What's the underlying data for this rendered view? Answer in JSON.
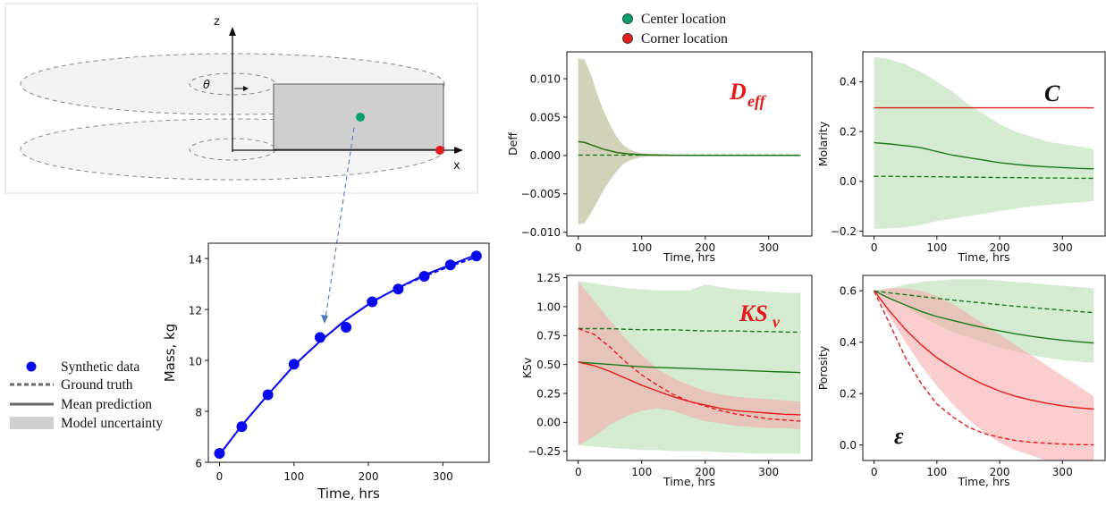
{
  "legend_top": {
    "items": [
      {
        "label": "Center location",
        "color": "#0b9e6f"
      },
      {
        "label": "Corner location",
        "color": "#e02020"
      }
    ]
  },
  "legend_left": {
    "items": [
      {
        "label": "Synthetic data",
        "kind": "dot"
      },
      {
        "label": "Ground truth",
        "kind": "dashed"
      },
      {
        "label": "Mean prediction",
        "kind": "solid"
      },
      {
        "label": "Model uncertainty",
        "kind": "band"
      }
    ]
  },
  "diagram": {
    "axis_z": "z",
    "axis_x": "x",
    "theta": "θ"
  },
  "colors": {
    "green": "#1a7a1a",
    "green_band": "#a9d8a6",
    "red": "#e41a1a",
    "red_band": "#f4a4a4",
    "blue": "#0a0aee",
    "symbol_red": "#e41a1a",
    "symbol_black": "#111111"
  },
  "chart_data": [
    {
      "id": "mass",
      "type": "scatter",
      "xlabel": "Time, hrs",
      "ylabel": "Mass, kg",
      "xlim": [
        -15,
        362
      ],
      "ylim": [
        6,
        14.6
      ],
      "xticks": [
        0,
        100,
        200,
        300
      ],
      "yticks": [
        6,
        8,
        10,
        12,
        14
      ],
      "series": [
        {
          "name": "Synthetic data",
          "kind": "points",
          "x": [
            0,
            30,
            65,
            100,
            135,
            170,
            205,
            240,
            275,
            310,
            345
          ],
          "y": [
            6.35,
            7.4,
            8.65,
            9.85,
            10.9,
            11.3,
            12.3,
            12.8,
            13.3,
            13.75,
            14.1
          ]
        },
        {
          "name": "Mean prediction",
          "kind": "line",
          "x": [
            0,
            30,
            65,
            100,
            135,
            170,
            205,
            240,
            275,
            310,
            345
          ],
          "y": [
            6.3,
            7.45,
            8.65,
            9.8,
            10.75,
            11.6,
            12.3,
            12.85,
            13.35,
            13.75,
            14.15
          ]
        },
        {
          "name": "Ground truth",
          "kind": "dashed",
          "x": [
            0,
            30,
            65,
            100,
            135,
            170,
            205,
            240,
            275,
            310,
            345
          ],
          "y": [
            6.3,
            7.45,
            8.65,
            9.8,
            10.75,
            11.6,
            12.3,
            12.85,
            13.3,
            13.7,
            14.05
          ]
        }
      ]
    },
    {
      "id": "deff",
      "type": "line",
      "symbol": "D_eff",
      "xlabel": "Time, hrs",
      "ylabel": "Deff",
      "xlim": [
        -18,
        368
      ],
      "ylim": [
        -0.0105,
        0.0135
      ],
      "xticks": [
        0,
        100,
        200,
        300
      ],
      "yticks": [
        -0.01,
        -0.005,
        0.0,
        0.005,
        0.01
      ],
      "ytick_labels": [
        "−0.010",
        "−0.005",
        "0.000",
        "0.005",
        "0.010"
      ],
      "x": [
        0,
        10,
        20,
        30,
        40,
        50,
        60,
        70,
        80,
        90,
        100,
        120,
        150,
        200,
        250,
        300,
        350
      ],
      "series": [
        {
          "name": "Corner location band",
          "kind": "band",
          "color": "red",
          "upper": [
            0.0127,
            0.0125,
            0.0105,
            0.008,
            0.0058,
            0.004,
            0.0025,
            0.0014,
            0.0008,
            0.0005,
            0.0003,
            0.0002,
            0.0001,
            5e-05,
            4e-05,
            3e-05,
            3e-05
          ],
          "lower": [
            -0.009,
            -0.0088,
            -0.0075,
            -0.006,
            -0.0045,
            -0.0032,
            -0.0021,
            -0.0012,
            -0.0007,
            -0.0004,
            -0.0002,
            -0.0001,
            -5e-05,
            -3e-05,
            -3e-05,
            -3e-05,
            -3e-05
          ]
        },
        {
          "name": "Center location band",
          "kind": "band",
          "color": "green",
          "upper": [
            0.0127,
            0.0125,
            0.0105,
            0.008,
            0.0058,
            0.004,
            0.0025,
            0.0014,
            0.0008,
            0.0005,
            0.0003,
            0.0002,
            0.0001,
            5e-05,
            4e-05,
            3e-05,
            3e-05
          ],
          "lower": [
            -0.009,
            -0.0088,
            -0.0075,
            -0.006,
            -0.0045,
            -0.0032,
            -0.0021,
            -0.0012,
            -0.0007,
            -0.0004,
            -0.0002,
            -0.0001,
            -5e-05,
            -3e-05,
            -3e-05,
            -3e-05,
            -3e-05
          ]
        },
        {
          "name": "Corner mean",
          "kind": "solid",
          "color": "red",
          "y": [
            0.0018,
            0.0017,
            0.0014,
            0.0011,
            0.0008,
            0.0006,
            0.0004,
            0.0003,
            0.0002,
            0.00015,
            0.0001,
            5e-05,
            2e-05,
            1e-05,
            1e-05,
            1e-05,
            1e-05
          ]
        },
        {
          "name": "Center mean",
          "kind": "solid",
          "color": "green",
          "y": [
            0.0018,
            0.0017,
            0.0014,
            0.0011,
            0.0008,
            0.0006,
            0.0004,
            0.0003,
            0.0002,
            0.00015,
            0.0001,
            5e-05,
            2e-05,
            1e-05,
            1e-05,
            1e-05,
            1e-05
          ]
        },
        {
          "name": "Center truth",
          "kind": "dashed",
          "color": "green",
          "y": [
            5e-05,
            5e-05,
            5e-05,
            5e-05,
            5e-05,
            5e-05,
            5e-05,
            5e-05,
            5e-05,
            5e-05,
            5e-05,
            5e-05,
            5e-05,
            5e-05,
            5e-05,
            5e-05,
            5e-05
          ]
        }
      ]
    },
    {
      "id": "molarity",
      "type": "line",
      "symbol": "C",
      "xlabel": "Time, hrs",
      "ylabel": "Molarity",
      "xlim": [
        -18,
        368
      ],
      "ylim": [
        -0.22,
        0.52
      ],
      "xticks": [
        0,
        100,
        200,
        300
      ],
      "yticks": [
        -0.2,
        0.0,
        0.2,
        0.4
      ],
      "ytick_labels": [
        "−0.2",
        "0.0",
        "0.2",
        "0.4"
      ],
      "x": [
        0,
        25,
        50,
        75,
        100,
        125,
        150,
        175,
        200,
        225,
        250,
        275,
        300,
        325,
        350
      ],
      "series": [
        {
          "name": "Center location band",
          "kind": "band",
          "color": "green",
          "upper": [
            0.5,
            0.49,
            0.47,
            0.44,
            0.4,
            0.36,
            0.31,
            0.27,
            0.23,
            0.2,
            0.18,
            0.16,
            0.15,
            0.14,
            0.13
          ],
          "lower": [
            -0.19,
            -0.19,
            -0.185,
            -0.175,
            -0.16,
            -0.15,
            -0.14,
            -0.13,
            -0.12,
            -0.11,
            -0.1,
            -0.095,
            -0.09,
            -0.085,
            -0.08
          ]
        },
        {
          "name": "Corner truth",
          "kind": "solid",
          "color": "red",
          "y": [
            0.295,
            0.295,
            0.295,
            0.295,
            0.295,
            0.295,
            0.295,
            0.295,
            0.295,
            0.295,
            0.295,
            0.295,
            0.295,
            0.295,
            0.295
          ]
        },
        {
          "name": "Center mean",
          "kind": "solid",
          "color": "green",
          "y": [
            0.155,
            0.15,
            0.143,
            0.135,
            0.12,
            0.105,
            0.095,
            0.085,
            0.075,
            0.068,
            0.062,
            0.058,
            0.055,
            0.052,
            0.05
          ]
        },
        {
          "name": "Center truth",
          "kind": "dashed",
          "color": "green",
          "y": [
            0.02,
            0.02,
            0.019,
            0.019,
            0.018,
            0.017,
            0.017,
            0.016,
            0.015,
            0.015,
            0.014,
            0.013,
            0.013,
            0.012,
            0.012
          ]
        }
      ]
    },
    {
      "id": "ksv",
      "type": "line",
      "symbol": "KS_v",
      "xlabel": "Time, hrs",
      "ylabel": "KSv",
      "xlim": [
        -18,
        368
      ],
      "ylim": [
        -0.33,
        1.27
      ],
      "xticks": [
        0,
        100,
        200,
        300
      ],
      "yticks": [
        -0.25,
        0.0,
        0.25,
        0.5,
        0.75,
        1.0,
        1.25
      ],
      "ytick_labels": [
        "−0.25",
        "0.00",
        "0.25",
        "0.50",
        "0.75",
        "1.00",
        "1.25"
      ],
      "x": [
        0,
        25,
        50,
        75,
        100,
        125,
        150,
        175,
        200,
        225,
        250,
        275,
        300,
        325,
        350
      ],
      "series": [
        {
          "name": "Center location band",
          "kind": "band",
          "color": "green",
          "upper": [
            1.22,
            1.2,
            1.18,
            1.16,
            1.15,
            1.14,
            1.14,
            1.14,
            1.19,
            1.17,
            1.15,
            1.14,
            1.13,
            1.12,
            1.12
          ],
          "lower": [
            -0.2,
            -0.21,
            -0.22,
            -0.23,
            -0.24,
            -0.24,
            -0.25,
            -0.25,
            -0.25,
            -0.26,
            -0.26,
            -0.27,
            -0.27,
            -0.27,
            -0.27
          ]
        },
        {
          "name": "Corner location band",
          "kind": "band",
          "color": "red",
          "upper": [
            1.22,
            1.05,
            0.88,
            0.72,
            0.58,
            0.46,
            0.38,
            0.32,
            0.27,
            0.24,
            0.22,
            0.21,
            0.2,
            0.19,
            0.18
          ],
          "lower": [
            -0.2,
            -0.12,
            -0.02,
            0.05,
            0.1,
            0.12,
            0.1,
            0.05,
            0.01,
            -0.01,
            -0.03,
            -0.04,
            -0.05,
            -0.05,
            -0.06
          ]
        },
        {
          "name": "Center truth",
          "kind": "dashed",
          "color": "green",
          "y": [
            0.81,
            0.81,
            0.81,
            0.805,
            0.8,
            0.8,
            0.8,
            0.795,
            0.79,
            0.79,
            0.79,
            0.785,
            0.785,
            0.78,
            0.78
          ]
        },
        {
          "name": "Corner truth",
          "kind": "dashed",
          "color": "red",
          "y": [
            0.81,
            0.76,
            0.65,
            0.52,
            0.41,
            0.32,
            0.24,
            0.18,
            0.14,
            0.1,
            0.07,
            0.05,
            0.03,
            0.02,
            0.01
          ]
        },
        {
          "name": "Center mean",
          "kind": "solid",
          "color": "green",
          "y": [
            0.52,
            0.51,
            0.5,
            0.49,
            0.48,
            0.475,
            0.47,
            0.465,
            0.46,
            0.455,
            0.45,
            0.445,
            0.44,
            0.435,
            0.43
          ]
        },
        {
          "name": "Corner mean",
          "kind": "solid",
          "color": "red",
          "y": [
            0.52,
            0.49,
            0.44,
            0.38,
            0.32,
            0.27,
            0.22,
            0.18,
            0.15,
            0.12,
            0.1,
            0.09,
            0.08,
            0.07,
            0.065
          ]
        }
      ]
    },
    {
      "id": "porosity",
      "type": "line",
      "symbol": "ε",
      "xlabel": "Time, hrs",
      "ylabel": "Porosity",
      "xlim": [
        -18,
        368
      ],
      "ylim": [
        -0.06,
        0.66
      ],
      "xticks": [
        0,
        100,
        200,
        300
      ],
      "yticks": [
        0.0,
        0.2,
        0.4,
        0.6
      ],
      "ytick_labels": [
        "0.0",
        "0.2",
        "0.4",
        "0.6"
      ],
      "x": [
        0,
        25,
        50,
        75,
        100,
        125,
        150,
        175,
        200,
        225,
        250,
        275,
        300,
        325,
        350
      ],
      "series": [
        {
          "name": "Center location band",
          "kind": "band",
          "color": "green",
          "upper": [
            0.6,
            0.61,
            0.625,
            0.635,
            0.64,
            0.645,
            0.645,
            0.645,
            0.64,
            0.635,
            0.63,
            0.625,
            0.62,
            0.615,
            0.61
          ],
          "lower": [
            0.6,
            0.57,
            0.54,
            0.5,
            0.47,
            0.44,
            0.42,
            0.4,
            0.38,
            0.365,
            0.35,
            0.34,
            0.33,
            0.325,
            0.32
          ]
        },
        {
          "name": "Corner location band",
          "kind": "band",
          "color": "red",
          "upper": [
            0.6,
            0.61,
            0.61,
            0.6,
            0.58,
            0.55,
            0.51,
            0.47,
            0.43,
            0.39,
            0.35,
            0.31,
            0.27,
            0.23,
            0.19
          ],
          "lower": [
            0.6,
            0.5,
            0.4,
            0.31,
            0.23,
            0.16,
            0.1,
            0.05,
            0.01,
            -0.02,
            -0.04,
            -0.06,
            -0.07,
            -0.075,
            -0.08
          ]
        },
        {
          "name": "Center truth",
          "kind": "dashed",
          "color": "green",
          "y": [
            0.6,
            0.592,
            0.585,
            0.578,
            0.571,
            0.564,
            0.558,
            0.552,
            0.546,
            0.54,
            0.535,
            0.53,
            0.525,
            0.52,
            0.515
          ]
        },
        {
          "name": "Center mean",
          "kind": "solid",
          "color": "green",
          "y": [
            0.6,
            0.57,
            0.545,
            0.52,
            0.5,
            0.485,
            0.47,
            0.456,
            0.444,
            0.433,
            0.423,
            0.415,
            0.408,
            0.402,
            0.397
          ]
        },
        {
          "name": "Corner mean",
          "kind": "solid",
          "color": "red",
          "y": [
            0.6,
            0.52,
            0.45,
            0.39,
            0.34,
            0.3,
            0.265,
            0.235,
            0.21,
            0.19,
            0.175,
            0.163,
            0.153,
            0.145,
            0.14
          ]
        },
        {
          "name": "Corner truth",
          "kind": "dashed",
          "color": "red",
          "y": [
            0.6,
            0.47,
            0.34,
            0.24,
            0.16,
            0.11,
            0.07,
            0.045,
            0.03,
            0.018,
            0.011,
            0.007,
            0.004,
            0.002,
            0.001
          ]
        }
      ]
    }
  ]
}
